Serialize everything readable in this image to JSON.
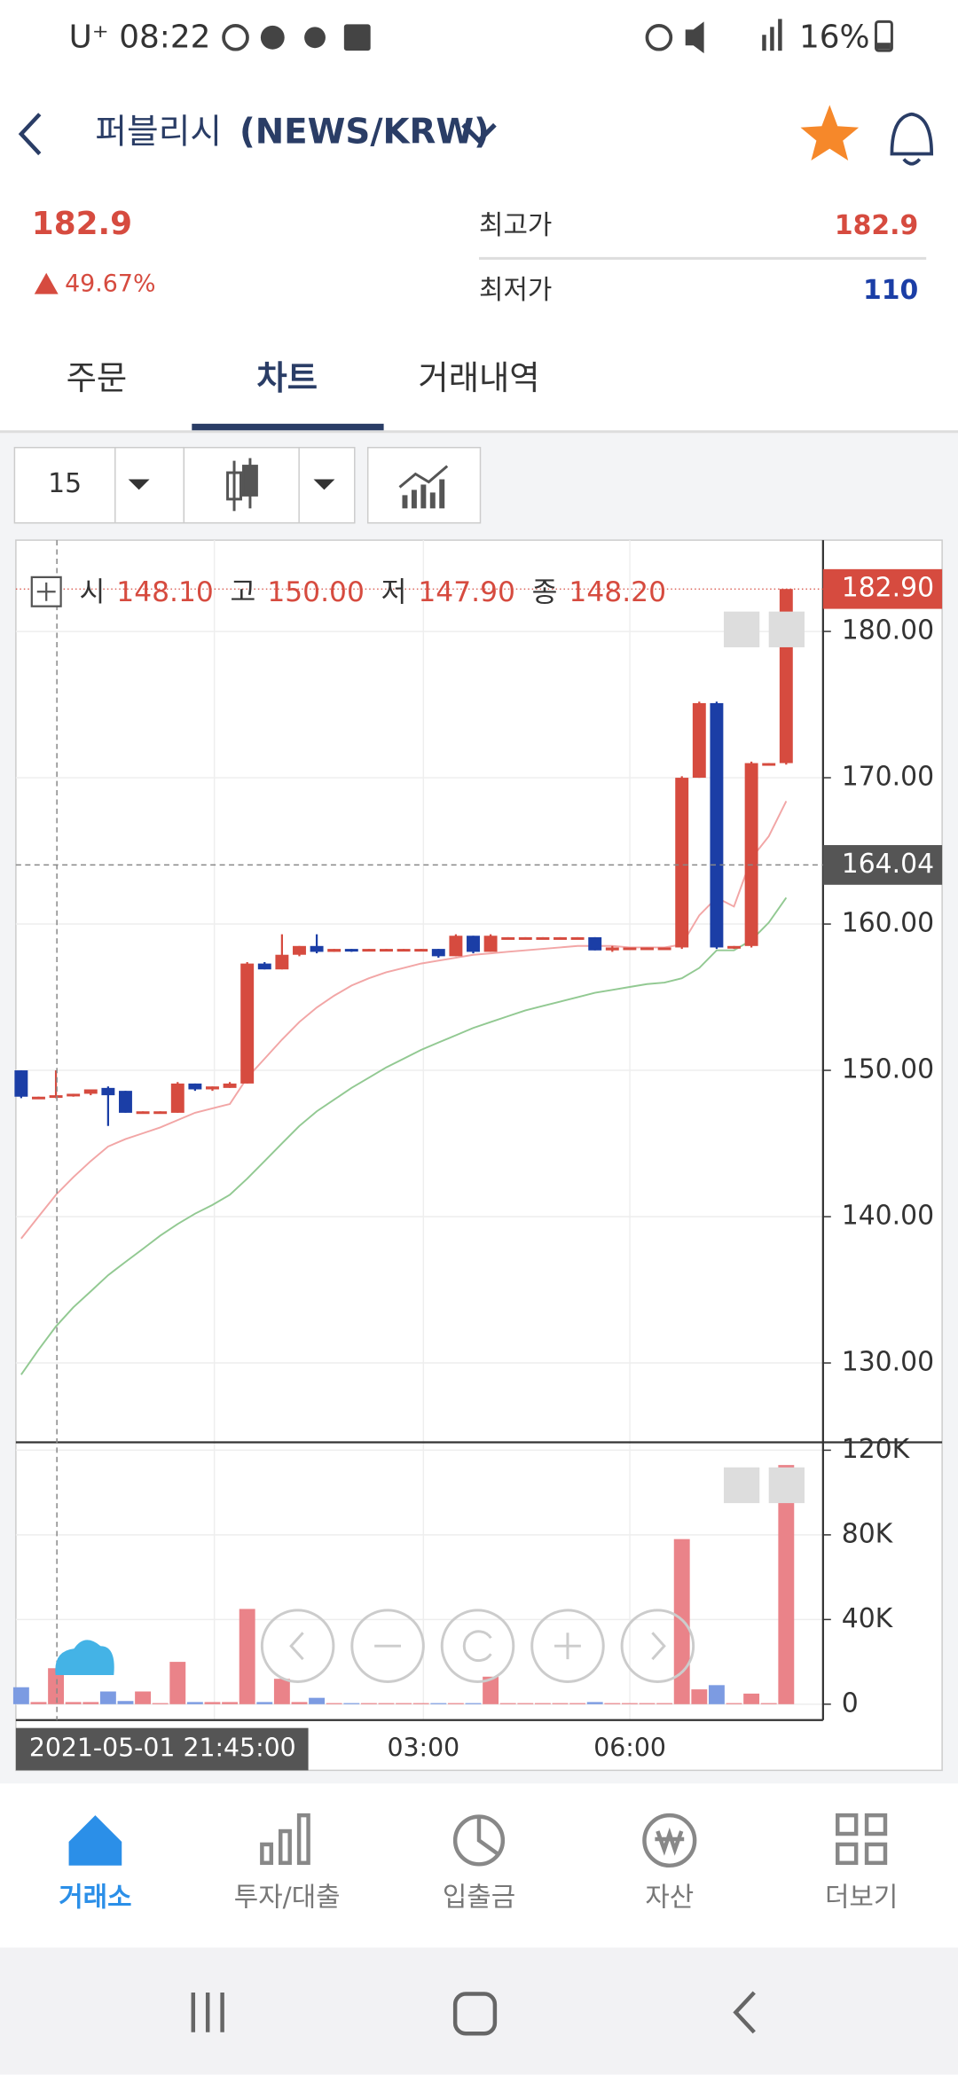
{
  "status_bar": {
    "carrier": "U⁺",
    "time": "08:22",
    "battery": "16%"
  },
  "header": {
    "title": "퍼블리시",
    "pair": "(NEWS/KRW)"
  },
  "price": {
    "current": 182.9,
    "change": "49.67%",
    "high_label": "최고가",
    "high": 182.9,
    "low_label": "최저가",
    "low": 110
  },
  "tabs": [
    "주문",
    "차트",
    "거래내역"
  ],
  "toolbar": {
    "interval": "15"
  },
  "chart_data": {
    "type": "candlestick",
    "ohlc_legend": {
      "labels": [
        "시",
        "고",
        "저",
        "종"
      ],
      "values": [
        "148.10",
        "150.00",
        "147.90",
        "148.20"
      ]
    },
    "up_color": "#d64b3f",
    "down_color": "#1b3ea6",
    "volume_up_color": "#ea8389",
    "volume_down_color": "#7c9be2",
    "candles": [
      {
        "open": 150,
        "high": 150,
        "low": 148.1,
        "close": 148.2
      },
      {
        "open": 148.1,
        "high": 148.2,
        "low": 148.1,
        "close": 148.2
      },
      {
        "open": 148.2,
        "high": 150,
        "low": 148.1,
        "close": 148.3
      },
      {
        "open": 148.3,
        "high": 148.4,
        "low": 148.2,
        "close": 148.4
      },
      {
        "open": 148.4,
        "high": 148.7,
        "low": 148.3,
        "close": 148.7
      },
      {
        "open": 148.8,
        "high": 148.9,
        "low": 146.2,
        "close": 148.3
      },
      {
        "open": 148.6,
        "high": 148.6,
        "low": 147.1,
        "close": 147.1
      },
      {
        "open": 147.1,
        "high": 147.2,
        "low": 147.1,
        "close": 147.2
      },
      {
        "open": 147.1,
        "high": 147.2,
        "low": 147.1,
        "close": 147.2
      },
      {
        "open": 147.1,
        "high": 149.2,
        "low": 147.1,
        "close": 149.1
      },
      {
        "open": 149.1,
        "high": 149.1,
        "low": 148.6,
        "close": 148.7
      },
      {
        "open": 148.7,
        "high": 148.9,
        "low": 148.6,
        "close": 148.9
      },
      {
        "open": 148.8,
        "high": 149.2,
        "low": 148.8,
        "close": 149.1
      },
      {
        "open": 149.1,
        "high": 157.4,
        "low": 149.1,
        "close": 157.3
      },
      {
        "open": 157.3,
        "high": 157.4,
        "low": 156.9,
        "close": 156.9
      },
      {
        "open": 156.9,
        "high": 159.3,
        "low": 156.9,
        "close": 157.9
      },
      {
        "open": 157.9,
        "high": 158.5,
        "low": 157.8,
        "close": 158.5
      },
      {
        "open": 158.5,
        "high": 159.3,
        "low": 158,
        "close": 158.1
      },
      {
        "open": 158.1,
        "high": 158.3,
        "low": 158.1,
        "close": 158.3
      },
      {
        "open": 158.3,
        "high": 158.3,
        "low": 158.1,
        "close": 158.2
      },
      {
        "open": 158.2,
        "high": 158.3,
        "low": 158.2,
        "close": 158.3
      },
      {
        "open": 158.2,
        "high": 158.3,
        "low": 158.2,
        "close": 158.3
      },
      {
        "open": 158.2,
        "high": 158.3,
        "low": 158.2,
        "close": 158.3
      },
      {
        "open": 158.2,
        "high": 158.3,
        "low": 158.2,
        "close": 158.3
      },
      {
        "open": 158.3,
        "high": 158.3,
        "low": 157.7,
        "close": 157.8
      },
      {
        "open": 157.8,
        "high": 159.3,
        "low": 157.8,
        "close": 159.2
      },
      {
        "open": 159.2,
        "high": 159.2,
        "low": 158,
        "close": 158.1
      },
      {
        "open": 158.1,
        "high": 159.3,
        "low": 158.1,
        "close": 159.2
      },
      {
        "open": 159,
        "high": 159.1,
        "low": 159,
        "close": 159.1
      },
      {
        "open": 159,
        "high": 159.1,
        "low": 159,
        "close": 159.1
      },
      {
        "open": 159,
        "high": 159.1,
        "low": 159,
        "close": 159.1
      },
      {
        "open": 159,
        "high": 159.1,
        "low": 159,
        "close": 159.1
      },
      {
        "open": 159,
        "high": 159.1,
        "low": 159,
        "close": 159.1
      },
      {
        "open": 159.1,
        "high": 159.1,
        "low": 158.2,
        "close": 158.2
      },
      {
        "open": 158.2,
        "high": 158.5,
        "low": 158.1,
        "close": 158.4
      },
      {
        "open": 158.3,
        "high": 158.4,
        "low": 158.3,
        "close": 158.4
      },
      {
        "open": 158.3,
        "high": 158.4,
        "low": 158.3,
        "close": 158.4
      },
      {
        "open": 158.3,
        "high": 158.4,
        "low": 158.3,
        "close": 158.4
      },
      {
        "open": 158.4,
        "high": 170.1,
        "low": 158.3,
        "close": 170
      },
      {
        "open": 170,
        "high": 175.2,
        "low": 170,
        "close": 175.1
      },
      {
        "open": 175.1,
        "high": 175.2,
        "low": 158.3,
        "close": 158.4
      },
      {
        "open": 158.4,
        "high": 158.5,
        "low": 158.3,
        "close": 158.5
      },
      {
        "open": 158.5,
        "high": 171.1,
        "low": 158.4,
        "close": 171
      },
      {
        "open": 170.9,
        "high": 171,
        "low": 170.9,
        "close": 171
      },
      {
        "open": 171,
        "high": 182.9,
        "low": 170.9,
        "close": 182.9
      }
    ],
    "series": [
      {
        "color": "#f2a6a6",
        "values": [
          138.5,
          140,
          141.5,
          142.7,
          143.8,
          144.8,
          145.3,
          145.7,
          146.1,
          146.6,
          147.1,
          147.4,
          147.7,
          149.5,
          150.8,
          152.1,
          153.3,
          154.3,
          155.1,
          155.8,
          156.3,
          156.7,
          157,
          157.3,
          157.5,
          157.7,
          157.9,
          158,
          158.1,
          158.2,
          158.3,
          158.4,
          158.5,
          158.5,
          158.5,
          158.4,
          158.4,
          158.4,
          158.6,
          160.6,
          161.8,
          161.2,
          164.5,
          166,
          168.4
        ]
      },
      {
        "color": "#92c992",
        "values": [
          129.2,
          130.9,
          132.5,
          133.8,
          134.9,
          136,
          136.9,
          137.8,
          138.7,
          139.5,
          140.2,
          140.8,
          141.5,
          142.6,
          143.8,
          145,
          146.2,
          147.2,
          148,
          148.8,
          149.5,
          150.2,
          150.8,
          151.4,
          151.9,
          152.4,
          152.9,
          153.3,
          153.7,
          154.1,
          154.4,
          154.7,
          155,
          155.3,
          155.5,
          155.7,
          155.9,
          156,
          156.3,
          157,
          158.2,
          158.2,
          158.9,
          160.1,
          161.8
        ]
      }
    ],
    "volume": [
      8000,
      1000,
      17000,
      1000,
      1000,
      6000,
      1500,
      6000,
      500,
      20000,
      1000,
      1000,
      1000,
      45000,
      1000,
      12000,
      1000,
      3000,
      500,
      500,
      500,
      500,
      500,
      500,
      500,
      500,
      500,
      13000,
      500,
      500,
      500,
      500,
      500,
      1000,
      500,
      500,
      500,
      500,
      78000,
      7000,
      9000,
      500,
      5000,
      500,
      113000
    ],
    "ylim": [
      124.58,
      186.24
    ],
    "yticks": [
      {
        "value": 130,
        "label": "130.00"
      },
      {
        "value": 140,
        "label": "140.00"
      },
      {
        "value": 150,
        "label": "150.00"
      },
      {
        "value": 160,
        "label": "160.00"
      },
      {
        "value": 170,
        "label": "170.00"
      },
      {
        "value": 180,
        "label": "180.00"
      }
    ],
    "volume_ylim": [
      -7500,
      123750
    ],
    "volume_yticks": [
      0,
      {
        "value": 40000,
        "label": "40K"
      },
      {
        "value": 80000,
        "label": "80K"
      },
      {
        "value": 120000,
        "label": "120K"
      }
    ],
    "last_price": {
      "value": 182.9,
      "label": "182.90"
    },
    "crosshair": {
      "value": 164.04,
      "label": "164.04"
    },
    "crosshair_time": "2021-05-01 21:45:00",
    "xtick_labels": [
      "03:00",
      "06:00"
    ],
    "grid": true
  },
  "nav": [
    "거래소",
    "투자/대출",
    "입출금",
    "자산",
    "더보기"
  ]
}
